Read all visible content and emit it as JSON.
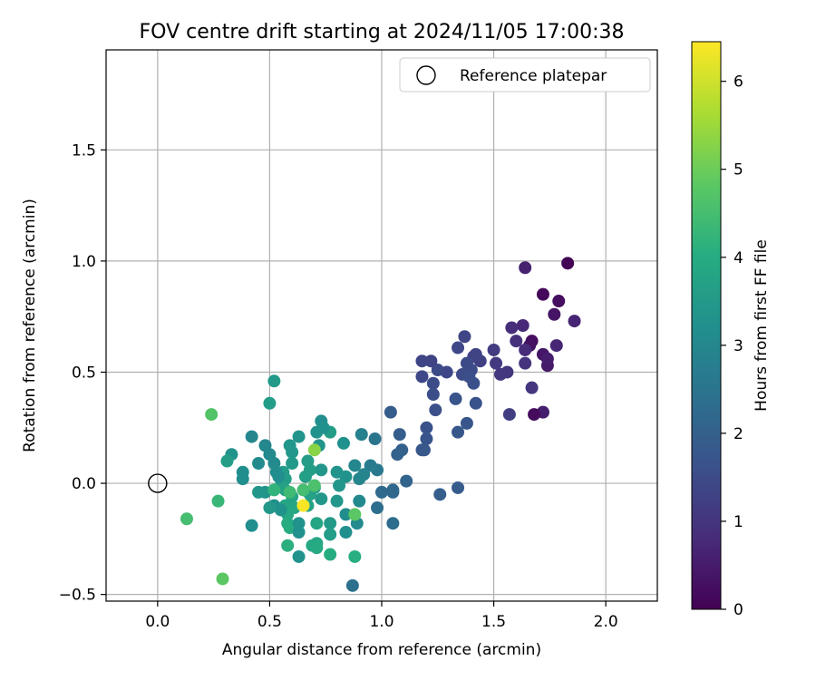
{
  "chart_data": {
    "type": "scatter",
    "title": "FOV centre drift starting at 2024/11/05 17:00:38",
    "xlabel": "Angular distance from reference (arcmin)",
    "ylabel": "Rotation from reference (arcmin)",
    "colorbar_label": "Hours from first FF file",
    "colormap": "viridis",
    "xlim": [
      -0.23,
      2.23
    ],
    "ylim": [
      -0.53,
      1.95
    ],
    "clim": [
      0,
      6.45
    ],
    "grid": true,
    "legend_position": "top-right",
    "x_ticks": [
      {
        "value": 0.0,
        "label": "0.0"
      },
      {
        "value": 0.5,
        "label": "0.5"
      },
      {
        "value": 1.0,
        "label": "1.0"
      },
      {
        "value": 1.5,
        "label": "1.5"
      },
      {
        "value": 2.0,
        "label": "2.0"
      }
    ],
    "y_ticks": [
      {
        "value": -0.5,
        "label": "−0.5"
      },
      {
        "value": 0.0,
        "label": "0.0"
      },
      {
        "value": 0.5,
        "label": "0.5"
      },
      {
        "value": 1.0,
        "label": "1.0"
      },
      {
        "value": 1.5,
        "label": "1.5"
      }
    ],
    "colorbar_ticks": [
      {
        "value": 0,
        "label": "0"
      },
      {
        "value": 1,
        "label": "1"
      },
      {
        "value": 2,
        "label": "2"
      },
      {
        "value": 3,
        "label": "3"
      },
      {
        "value": 4,
        "label": "4"
      },
      {
        "value": 5,
        "label": "5"
      },
      {
        "value": 6,
        "label": "6"
      }
    ],
    "reference": {
      "name": "Reference platepar",
      "x": 0.0,
      "y": 0.0
    },
    "points": [
      {
        "x": 1.83,
        "y": 0.99,
        "hours": 0.05
      },
      {
        "x": 1.72,
        "y": 0.85,
        "hours": 0.15
      },
      {
        "x": 1.79,
        "y": 0.82,
        "hours": 0.25
      },
      {
        "x": 1.77,
        "y": 0.76,
        "hours": 0.35
      },
      {
        "x": 1.67,
        "y": 0.64,
        "hours": 0.25
      },
      {
        "x": 1.66,
        "y": 0.62,
        "hours": 0.3
      },
      {
        "x": 1.72,
        "y": 0.58,
        "hours": 0.4
      },
      {
        "x": 1.74,
        "y": 0.53,
        "hours": 0.45
      },
      {
        "x": 1.74,
        "y": 0.56,
        "hours": 0.5
      },
      {
        "x": 1.72,
        "y": 0.32,
        "hours": 0.55
      },
      {
        "x": 1.68,
        "y": 0.31,
        "hours": 0.2
      },
      {
        "x": 1.64,
        "y": 0.97,
        "hours": 0.6
      },
      {
        "x": 1.86,
        "y": 0.73,
        "hours": 0.65
      },
      {
        "x": 1.78,
        "y": 0.62,
        "hours": 0.7
      },
      {
        "x": 1.63,
        "y": 0.71,
        "hours": 0.75
      },
      {
        "x": 1.64,
        "y": 0.6,
        "hours": 0.8
      },
      {
        "x": 1.58,
        "y": 0.7,
        "hours": 0.85
      },
      {
        "x": 1.6,
        "y": 0.64,
        "hours": 0.9
      },
      {
        "x": 1.64,
        "y": 0.54,
        "hours": 0.95
      },
      {
        "x": 1.67,
        "y": 0.43,
        "hours": 1.0
      },
      {
        "x": 1.56,
        "y": 0.5,
        "hours": 1.0
      },
      {
        "x": 1.53,
        "y": 0.49,
        "hours": 1.05
      },
      {
        "x": 1.51,
        "y": 0.54,
        "hours": 1.1
      },
      {
        "x": 1.5,
        "y": 0.6,
        "hours": 1.15
      },
      {
        "x": 1.57,
        "y": 0.31,
        "hours": 1.2
      },
      {
        "x": 1.44,
        "y": 0.55,
        "hours": 1.25
      },
      {
        "x": 1.42,
        "y": 0.58,
        "hours": 1.3
      },
      {
        "x": 1.41,
        "y": 0.57,
        "hours": 1.3
      },
      {
        "x": 1.37,
        "y": 0.66,
        "hours": 1.35
      },
      {
        "x": 1.34,
        "y": 0.61,
        "hours": 1.4
      },
      {
        "x": 1.38,
        "y": 0.54,
        "hours": 1.45
      },
      {
        "x": 1.4,
        "y": 0.51,
        "hours": 1.5
      },
      {
        "x": 1.36,
        "y": 0.49,
        "hours": 1.5
      },
      {
        "x": 1.39,
        "y": 0.48,
        "hours": 1.55
      },
      {
        "x": 1.41,
        "y": 0.45,
        "hours": 1.6
      },
      {
        "x": 1.42,
        "y": 0.36,
        "hours": 1.65
      },
      {
        "x": 1.33,
        "y": 0.38,
        "hours": 1.7
      },
      {
        "x": 1.38,
        "y": 0.27,
        "hours": 1.75
      },
      {
        "x": 1.34,
        "y": 0.23,
        "hours": 1.8
      },
      {
        "x": 1.29,
        "y": 0.5,
        "hours": 1.4
      },
      {
        "x": 1.25,
        "y": 0.51,
        "hours": 1.45
      },
      {
        "x": 1.22,
        "y": 0.55,
        "hours": 1.3
      },
      {
        "x": 1.18,
        "y": 0.55,
        "hours": 1.35
      },
      {
        "x": 1.18,
        "y": 0.48,
        "hours": 1.4
      },
      {
        "x": 1.23,
        "y": 0.45,
        "hours": 1.5
      },
      {
        "x": 1.23,
        "y": 0.4,
        "hours": 1.55
      },
      {
        "x": 1.24,
        "y": 0.33,
        "hours": 1.6
      },
      {
        "x": 1.2,
        "y": 0.25,
        "hours": 1.65
      },
      {
        "x": 1.2,
        "y": 0.2,
        "hours": 1.7
      },
      {
        "x": 1.19,
        "y": 0.15,
        "hours": 1.75
      },
      {
        "x": 1.18,
        "y": 0.15,
        "hours": 1.8
      },
      {
        "x": 1.34,
        "y": -0.02,
        "hours": 1.9
      },
      {
        "x": 1.26,
        "y": -0.05,
        "hours": 1.95
      },
      {
        "x": 1.04,
        "y": 0.32,
        "hours": 1.9
      },
      {
        "x": 1.08,
        "y": 0.22,
        "hours": 1.95
      },
      {
        "x": 1.09,
        "y": 0.15,
        "hours": 2.0
      },
      {
        "x": 1.07,
        "y": 0.13,
        "hours": 2.05
      },
      {
        "x": 1.11,
        "y": 0.01,
        "hours": 2.1
      },
      {
        "x": 1.05,
        "y": -0.03,
        "hours": 2.15
      },
      {
        "x": 1.05,
        "y": -0.04,
        "hours": 2.2
      },
      {
        "x": 1.0,
        "y": -0.04,
        "hours": 2.25
      },
      {
        "x": 1.05,
        "y": -0.18,
        "hours": 2.3
      },
      {
        "x": 0.98,
        "y": -0.11,
        "hours": 2.35
      },
      {
        "x": 0.87,
        "y": -0.46,
        "hours": 2.4
      },
      {
        "x": 0.97,
        "y": 0.2,
        "hours": 2.5
      },
      {
        "x": 0.98,
        "y": 0.06,
        "hours": 2.6
      },
      {
        "x": 0.95,
        "y": 0.08,
        "hours": 2.7
      },
      {
        "x": 0.91,
        "y": 0.22,
        "hours": 2.8
      },
      {
        "x": 0.92,
        "y": 0.04,
        "hours": 2.9
      },
      {
        "x": 0.9,
        "y": 0.02,
        "hours": 2.95
      },
      {
        "x": 0.88,
        "y": 0.08,
        "hours": 3.0
      },
      {
        "x": 0.9,
        "y": -0.08,
        "hours": 3.05
      },
      {
        "x": 0.89,
        "y": -0.18,
        "hours": 3.1
      },
      {
        "x": 0.84,
        "y": -0.14,
        "hours": 3.15
      },
      {
        "x": 0.84,
        "y": -0.22,
        "hours": 3.2
      },
      {
        "x": 0.83,
        "y": 0.18,
        "hours": 3.25
      },
      {
        "x": 0.84,
        "y": 0.03,
        "hours": 3.3
      },
      {
        "x": 0.8,
        "y": 0.05,
        "hours": 3.35
      },
      {
        "x": 0.81,
        "y": -0.01,
        "hours": 3.4
      },
      {
        "x": 0.8,
        "y": -0.08,
        "hours": 3.45
      },
      {
        "x": 0.77,
        "y": -0.18,
        "hours": 3.5
      },
      {
        "x": 0.77,
        "y": -0.23,
        "hours": 3.55
      },
      {
        "x": 0.77,
        "y": 0.23,
        "hours": 3.6
      },
      {
        "x": 0.73,
        "y": 0.28,
        "hours": 3.2
      },
      {
        "x": 0.74,
        "y": 0.25,
        "hours": 3.25
      },
      {
        "x": 0.71,
        "y": 0.23,
        "hours": 3.3
      },
      {
        "x": 0.72,
        "y": 0.17,
        "hours": 3.35
      },
      {
        "x": 0.73,
        "y": 0.06,
        "hours": 3.4
      },
      {
        "x": 0.73,
        "y": -0.07,
        "hours": 3.45
      },
      {
        "x": 0.7,
        "y": -0.02,
        "hours": 3.5
      },
      {
        "x": 0.67,
        "y": 0.1,
        "hours": 3.55
      },
      {
        "x": 0.68,
        "y": 0.06,
        "hours": 3.6
      },
      {
        "x": 0.66,
        "y": 0.03,
        "hours": 3.65
      },
      {
        "x": 0.68,
        "y": -0.05,
        "hours": 3.7
      },
      {
        "x": 0.67,
        "y": -0.1,
        "hours": 3.75
      },
      {
        "x": 0.71,
        "y": -0.18,
        "hours": 3.8
      },
      {
        "x": 0.71,
        "y": -0.27,
        "hours": 3.85
      },
      {
        "x": 0.69,
        "y": -0.28,
        "hours": 3.9
      },
      {
        "x": 0.71,
        "y": -0.29,
        "hours": 3.95
      },
      {
        "x": 0.77,
        "y": -0.32,
        "hours": 4.0
      },
      {
        "x": 0.88,
        "y": -0.33,
        "hours": 4.05
      },
      {
        "x": 0.63,
        "y": -0.33,
        "hours": 3.3
      },
      {
        "x": 0.63,
        "y": 0.21,
        "hours": 3.35
      },
      {
        "x": 0.59,
        "y": 0.17,
        "hours": 3.4
      },
      {
        "x": 0.6,
        "y": 0.14,
        "hours": 3.45
      },
      {
        "x": 0.6,
        "y": 0.09,
        "hours": 3.5
      },
      {
        "x": 0.56,
        "y": 0.05,
        "hours": 3.55
      },
      {
        "x": 0.57,
        "y": 0.02,
        "hours": 3.6
      },
      {
        "x": 0.55,
        "y": -0.01,
        "hours": 3.65
      },
      {
        "x": 0.57,
        "y": -0.03,
        "hours": 3.7
      },
      {
        "x": 0.6,
        "y": -0.06,
        "hours": 3.75
      },
      {
        "x": 0.57,
        "y": -0.1,
        "hours": 3.8
      },
      {
        "x": 0.61,
        "y": -0.11,
        "hours": 3.85
      },
      {
        "x": 0.58,
        "y": -0.14,
        "hours": 3.9
      },
      {
        "x": 0.58,
        "y": -0.18,
        "hours": 3.95
      },
      {
        "x": 0.59,
        "y": -0.2,
        "hours": 4.0
      },
      {
        "x": 0.63,
        "y": -0.22,
        "hours": 3.25
      },
      {
        "x": 0.63,
        "y": -0.18,
        "hours": 3.3
      },
      {
        "x": 0.58,
        "y": -0.28,
        "hours": 4.1
      },
      {
        "x": 0.52,
        "y": 0.46,
        "hours": 3.5
      },
      {
        "x": 0.5,
        "y": 0.36,
        "hours": 3.55
      },
      {
        "x": 0.48,
        "y": 0.17,
        "hours": 3.0
      },
      {
        "x": 0.5,
        "y": 0.13,
        "hours": 3.05
      },
      {
        "x": 0.52,
        "y": 0.09,
        "hours": 3.1
      },
      {
        "x": 0.53,
        "y": 0.05,
        "hours": 3.15
      },
      {
        "x": 0.54,
        "y": 0.03,
        "hours": 3.2
      },
      {
        "x": 0.52,
        "y": -0.1,
        "hours": 3.25
      },
      {
        "x": 0.55,
        "y": -0.12,
        "hours": 3.3
      },
      {
        "x": 0.48,
        "y": -0.04,
        "hours": 3.35
      },
      {
        "x": 0.45,
        "y": -0.04,
        "hours": 3.4
      },
      {
        "x": 0.52,
        "y": -0.03,
        "hours": 4.2
      },
      {
        "x": 0.5,
        "y": -0.11,
        "hours": 3.45
      },
      {
        "x": 0.42,
        "y": 0.21,
        "hours": 3.0
      },
      {
        "x": 0.45,
        "y": 0.09,
        "hours": 3.1
      },
      {
        "x": 0.38,
        "y": 0.05,
        "hours": 3.15
      },
      {
        "x": 0.38,
        "y": 0.02,
        "hours": 3.2
      },
      {
        "x": 0.33,
        "y": 0.13,
        "hours": 3.3
      },
      {
        "x": 0.31,
        "y": 0.1,
        "hours": 3.6
      },
      {
        "x": 0.42,
        "y": -0.19,
        "hours": 3.2
      },
      {
        "x": 0.24,
        "y": 0.31,
        "hours": 4.7
      },
      {
        "x": 0.27,
        "y": -0.08,
        "hours": 4.3
      },
      {
        "x": 0.13,
        "y": -0.16,
        "hours": 4.5
      },
      {
        "x": 0.29,
        "y": -0.43,
        "hours": 4.8
      },
      {
        "x": 0.7,
        "y": 0.15,
        "hours": 5.3
      },
      {
        "x": 0.7,
        "y": -0.01,
        "hours": 4.6
      },
      {
        "x": 0.65,
        "y": -0.03,
        "hours": 4.5
      },
      {
        "x": 0.59,
        "y": -0.04,
        "hours": 4.4
      },
      {
        "x": 0.88,
        "y": -0.14,
        "hours": 4.8
      },
      {
        "x": 0.65,
        "y": -0.1,
        "hours": 6.4
      }
    ]
  }
}
